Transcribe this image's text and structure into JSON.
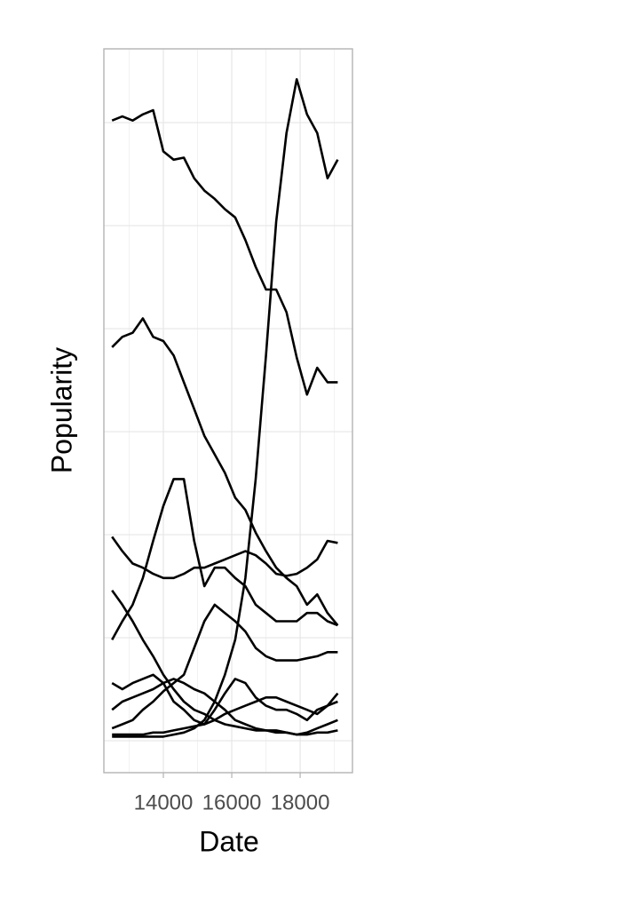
{
  "chart_data": {
    "type": "line",
    "x_label": "Date",
    "y_label": "Popularity",
    "xlim": [
      12260,
      19530
    ],
    "xticks": [
      14000,
      16000,
      18000
    ],
    "xminor": [
      13000,
      15000,
      17000,
      19000
    ],
    "ylim": [
      -1.55,
      33.58
    ],
    "yticks": [
      0,
      5,
      10,
      15,
      20,
      25,
      30
    ],
    "show_ytick_labels": false,
    "grid": true,
    "x": [
      12500,
      12800,
      13100,
      13400,
      13700,
      14000,
      14300,
      14600,
      14900,
      15200,
      15500,
      15800,
      16100,
      16400,
      16700,
      17000,
      17300,
      17600,
      17900,
      18200,
      18500,
      18800,
      19100
    ],
    "series": [
      {
        "color": "#000000",
        "values": [
          30.1,
          30.3,
          30.1,
          30.4,
          30.6,
          28.6,
          28.2,
          28.3,
          27.3,
          26.7,
          26.3,
          25.8,
          25.4,
          24.3,
          23.0,
          21.9,
          21.9,
          20.8,
          18.6,
          16.8,
          18.1,
          17.4,
          17.4
        ]
      },
      {
        "color": "#000000",
        "values": [
          19.1,
          19.6,
          19.8,
          20.5,
          19.6,
          19.4,
          18.7,
          17.4,
          16.1,
          14.8,
          13.9,
          13.0,
          11.8,
          11.2,
          10.1,
          9.2,
          8.4,
          7.9,
          7.5,
          6.6,
          7.1,
          6.2,
          5.6
        ]
      },
      {
        "color": "#000000",
        "values": [
          0.2,
          0.2,
          0.2,
          0.2,
          0.2,
          0.2,
          0.3,
          0.4,
          0.6,
          1.0,
          1.9,
          3.2,
          4.9,
          7.9,
          12.7,
          18.7,
          25.2,
          29.5,
          32.1,
          30.4,
          29.5,
          27.3,
          28.2
        ]
      },
      {
        "color": "#000000",
        "values": [
          4.9,
          5.8,
          6.6,
          7.9,
          9.7,
          11.4,
          12.7,
          12.7,
          9.7,
          7.5,
          8.4,
          8.4,
          7.9,
          7.5,
          6.6,
          6.2,
          5.8,
          5.8,
          5.8,
          6.2,
          6.2,
          5.8,
          5.6
        ]
      },
      {
        "color": "#000000",
        "values": [
          9.9,
          9.2,
          8.6,
          8.4,
          8.1,
          7.9,
          7.9,
          8.1,
          8.4,
          8.4,
          8.6,
          8.8,
          9.0,
          9.2,
          9.0,
          8.6,
          8.1,
          8.0,
          8.1,
          8.4,
          8.8,
          9.7,
          9.6
        ]
      },
      {
        "color": "#000000",
        "values": [
          7.3,
          6.6,
          5.8,
          4.9,
          4.1,
          3.2,
          2.5,
          1.9,
          1.5,
          1.3,
          1.0,
          0.8,
          0.7,
          0.6,
          0.5,
          0.5,
          0.5,
          0.4,
          0.3,
          0.4,
          0.6,
          0.8,
          1.0
        ]
      },
      {
        "color": "#000000",
        "values": [
          0.6,
          0.8,
          1.0,
          1.5,
          1.9,
          2.4,
          2.8,
          3.2,
          4.5,
          5.8,
          6.6,
          6.2,
          5.8,
          5.3,
          4.5,
          4.1,
          3.9,
          3.9,
          3.9,
          4.0,
          4.1,
          4.3,
          4.3
        ]
      },
      {
        "color": "#000000",
        "values": [
          2.8,
          2.5,
          2.8,
          3.0,
          3.2,
          2.8,
          1.9,
          1.5,
          1.0,
          0.8,
          1.5,
          2.3,
          3.0,
          2.8,
          2.1,
          1.7,
          1.5,
          1.5,
          1.3,
          1.0,
          1.5,
          1.7,
          1.9
        ]
      },
      {
        "color": "#000000",
        "values": [
          0.3,
          0.3,
          0.3,
          0.3,
          0.4,
          0.4,
          0.5,
          0.6,
          0.7,
          0.8,
          1.0,
          1.3,
          1.5,
          1.7,
          1.9,
          2.1,
          2.1,
          1.9,
          1.7,
          1.5,
          1.3,
          1.7,
          2.3
        ]
      },
      {
        "color": "#000000",
        "values": [
          1.5,
          1.9,
          2.1,
          2.3,
          2.5,
          2.8,
          3.0,
          2.8,
          2.5,
          2.3,
          1.9,
          1.5,
          1.0,
          0.8,
          0.6,
          0.5,
          0.4,
          0.4,
          0.3,
          0.3,
          0.4,
          0.4,
          0.5
        ]
      }
    ]
  }
}
